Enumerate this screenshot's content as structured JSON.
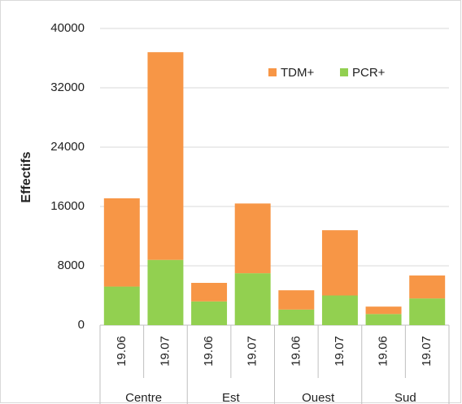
{
  "chart_data": {
    "type": "bar",
    "stacked": true,
    "y_label": "Effectifs",
    "categories": [
      "19.06",
      "19.07",
      "19.06",
      "19.07",
      "19.06",
      "19.07",
      "19.06",
      "19.07"
    ],
    "groups": [
      "Centre",
      "Est",
      "Ouest",
      "Sud"
    ],
    "series": [
      {
        "name": "TDM+",
        "color": "#f79646",
        "values": [
          11900,
          28000,
          2500,
          9400,
          2600,
          8800,
          1000,
          3100
        ]
      },
      {
        "name": "PCR+",
        "color": "#92d050",
        "values": [
          5200,
          8800,
          3200,
          7000,
          2100,
          4000,
          1500,
          3600
        ]
      }
    ],
    "stack_order": [
      "PCR+",
      "TDM+"
    ],
    "ylim": [
      0,
      40000
    ],
    "yticks": [
      0,
      8000,
      16000,
      24000,
      32000,
      40000
    ],
    "grid": true,
    "legend": "top-right"
  }
}
